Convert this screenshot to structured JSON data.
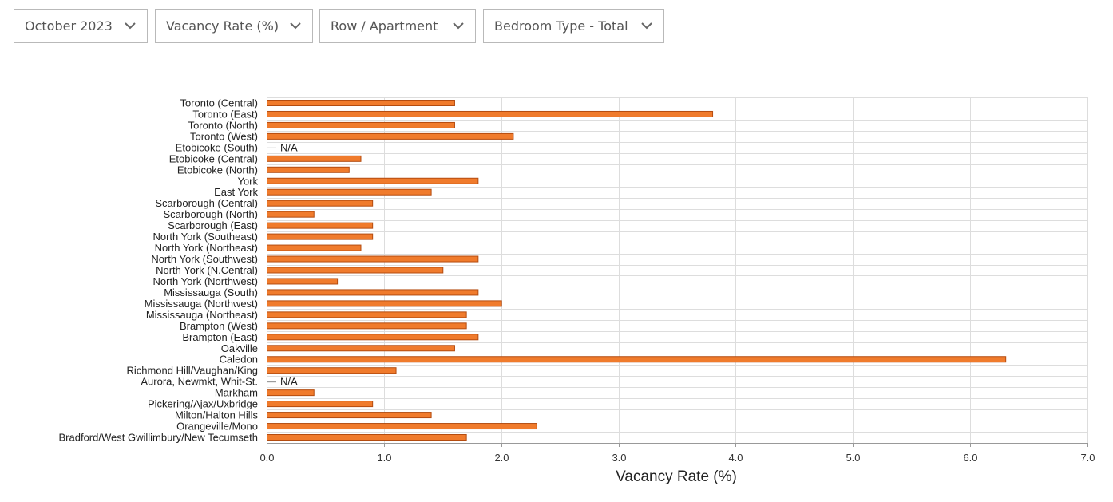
{
  "filters": {
    "period": "October 2023",
    "metric": "Vacancy Rate (%)",
    "structure": "Row / Apartment",
    "bedroom": "Bedroom Type - Total"
  },
  "icons": {
    "dropdown": "chevron-down-icon"
  },
  "colors": {
    "bar_fill": "#f07b2c",
    "bar_stroke": "#b44c10",
    "grid": "#dddddd",
    "axis": "#999999"
  },
  "chart_data": {
    "type": "bar",
    "orientation": "horizontal",
    "xlabel": "Vacancy Rate (%)",
    "xlim": [
      0,
      7
    ],
    "xticks": [
      "0.0",
      "1.0",
      "2.0",
      "3.0",
      "4.0",
      "5.0",
      "6.0",
      "7.0"
    ],
    "grid": true,
    "missing_label": "N/A",
    "categories": [
      "Toronto (Central)",
      "Toronto (East)",
      "Toronto (North)",
      "Toronto (West)",
      "Etobicoke (South)",
      "Etobicoke (Central)",
      "Etobicoke (North)",
      "York",
      "East York",
      "Scarborough (Central)",
      "Scarborough (North)",
      "Scarborough (East)",
      "North York (Southeast)",
      "North York (Northeast)",
      "North York (Southwest)",
      "North York (N.Central)",
      "North York (Northwest)",
      "Mississauga (South)",
      "Mississauga (Northwest)",
      "Mississauga (Northeast)",
      "Brampton (West)",
      "Brampton (East)",
      "Oakville",
      "Caledon",
      "Richmond Hill/Vaughan/King",
      "Aurora, Newmkt, Whit-St.",
      "Markham",
      "Pickering/Ajax/Uxbridge",
      "Milton/Halton Hills",
      "Orangeville/Mono",
      "Bradford/West Gwillimbury/New Tecumseth"
    ],
    "values": [
      1.6,
      3.8,
      1.6,
      2.1,
      null,
      0.8,
      0.7,
      1.8,
      1.4,
      0.9,
      0.4,
      0.9,
      0.9,
      0.8,
      1.8,
      1.5,
      0.6,
      1.8,
      2.0,
      1.7,
      1.7,
      1.8,
      1.6,
      6.3,
      1.1,
      null,
      0.4,
      0.9,
      1.4,
      2.3,
      1.7
    ]
  }
}
